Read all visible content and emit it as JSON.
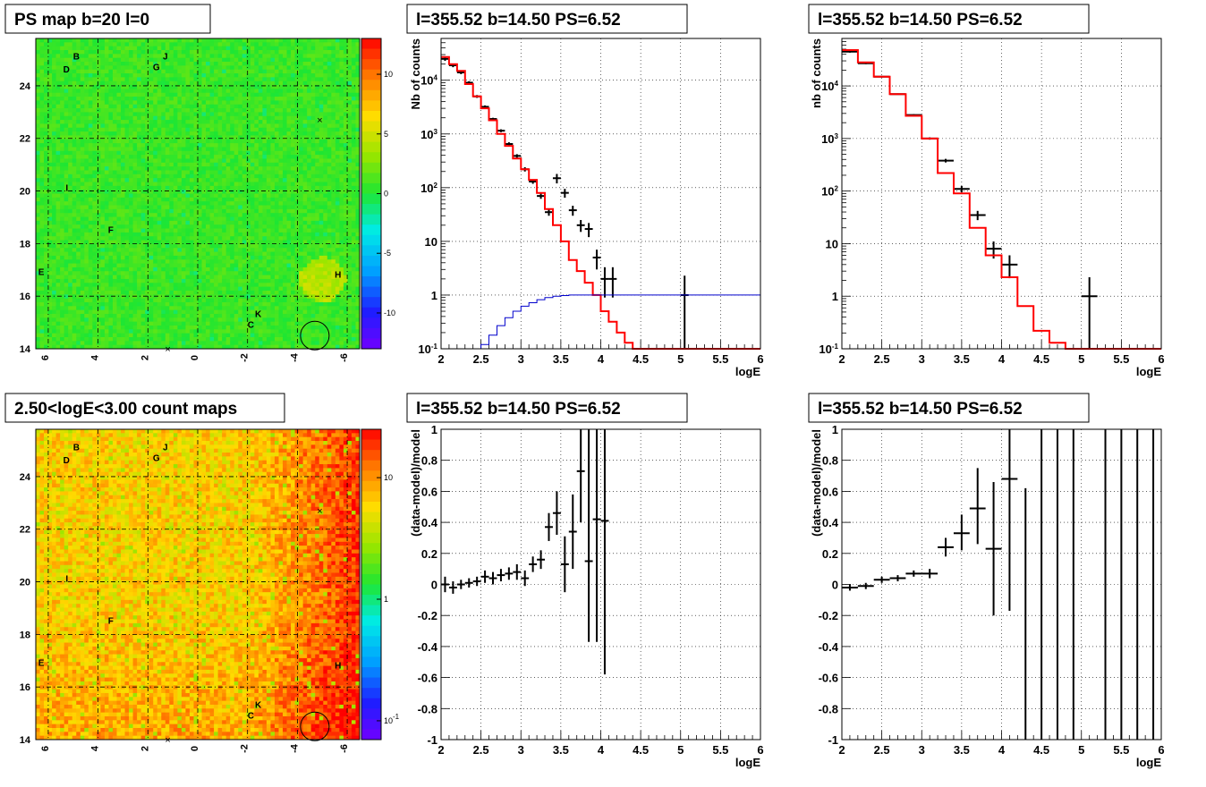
{
  "chart_data": [
    {
      "id": "ps-map",
      "type": "heatmap",
      "title": "PS map b=20 l=0",
      "x_ticks": [
        "6",
        "4",
        "2",
        "0",
        "-2",
        "-4",
        "-6"
      ],
      "y_ticks": [
        "14",
        "16",
        "18",
        "20",
        "22",
        "24"
      ],
      "xlim": [
        6.5,
        -6.5
      ],
      "ylim": [
        14,
        25.8
      ],
      "colorbar_ticks": [
        "10",
        "5",
        "0",
        "-5",
        "-10"
      ],
      "colorbar_range": [
        -13,
        13
      ],
      "colorbar_scale": "linear",
      "base_color": "#2fe62a",
      "source_labels": [
        {
          "text": "B",
          "l": 5.0,
          "b": 25.0
        },
        {
          "text": "D",
          "l": 5.4,
          "b": 24.5
        },
        {
          "text": "J",
          "l": 1.4,
          "b": 25.0
        },
        {
          "text": "G",
          "l": 1.8,
          "b": 24.6
        },
        {
          "text": "I",
          "l": 5.3,
          "b": 20.0
        },
        {
          "text": "F",
          "l": 3.6,
          "b": 18.4
        },
        {
          "text": "E",
          "l": 6.4,
          "b": 16.8
        },
        {
          "text": "H",
          "l": -5.5,
          "b": 16.7
        },
        {
          "text": "K",
          "l": -2.3,
          "b": 15.2
        },
        {
          "text": "C",
          "l": -2.0,
          "b": 14.8
        }
      ],
      "markers": [
        {
          "type": "x",
          "l": -4.9,
          "b": 22.7
        },
        {
          "type": "x",
          "l": 1.2,
          "b": 14.0
        },
        {
          "type": "circle",
          "l": -4.7,
          "b": 14.5,
          "r": 0.5
        }
      ]
    },
    {
      "id": "count-map",
      "type": "heatmap",
      "title": "2.50<logE<3.00 count maps",
      "x_ticks": [
        "6",
        "4",
        "2",
        "0",
        "-2",
        "-4",
        "-6"
      ],
      "y_ticks": [
        "14",
        "16",
        "18",
        "20",
        "22",
        "24"
      ],
      "xlim": [
        6.5,
        -6.5
      ],
      "ylim": [
        14,
        25.8
      ],
      "colorbar_ticks": [
        "10",
        "1",
        "10^-1"
      ],
      "colorbar_range": [
        0.07,
        25
      ],
      "colorbar_scale": "log",
      "base_color": "#ffa000",
      "source_labels": [
        {
          "text": "B",
          "l": 5.0,
          "b": 25.0
        },
        {
          "text": "D",
          "l": 5.4,
          "b": 24.5
        },
        {
          "text": "J",
          "l": 1.4,
          "b": 25.0
        },
        {
          "text": "G",
          "l": 1.8,
          "b": 24.6
        },
        {
          "text": "I",
          "l": 5.3,
          "b": 20.0
        },
        {
          "text": "F",
          "l": 3.6,
          "b": 18.4
        },
        {
          "text": "E",
          "l": 6.4,
          "b": 16.8
        },
        {
          "text": "H",
          "l": -5.5,
          "b": 16.7
        },
        {
          "text": "K",
          "l": -2.3,
          "b": 15.2
        },
        {
          "text": "C",
          "l": -2.0,
          "b": 14.8
        }
      ],
      "markers": [
        {
          "type": "x",
          "l": -4.9,
          "b": 22.7
        },
        {
          "type": "x",
          "l": 1.2,
          "b": 14.0
        },
        {
          "type": "circle",
          "l": -4.7,
          "b": 14.5,
          "r": 0.5
        }
      ]
    },
    {
      "id": "spectrum-fine",
      "type": "line",
      "title": "l=355.52 b=14.50 PS=6.52",
      "xlabel": "logE",
      "ylabel": "Nb of counts",
      "xlim": [
        2,
        6
      ],
      "ylim": [
        0.1,
        60000
      ],
      "yscale": "log",
      "grid": true,
      "x_ticks": [
        "2",
        "2.5",
        "3",
        "3.5",
        "4",
        "4.5",
        "5",
        "5.5",
        "6"
      ],
      "y_ticks": [
        {
          "v": 0.1,
          "label": "10^-1"
        },
        {
          "v": 1,
          "label": "1"
        },
        {
          "v": 10,
          "label": "10"
        },
        {
          "v": 100,
          "label": "10^2"
        },
        {
          "v": 1000,
          "label": "10^3"
        },
        {
          "v": 10000,
          "label": "10^4"
        }
      ],
      "bin_edges": [
        2.0,
        2.1,
        2.2,
        2.3,
        2.4,
        2.5,
        2.6,
        2.7,
        2.8,
        2.9,
        3.0,
        3.1,
        3.2,
        3.3,
        3.4,
        3.5,
        3.6,
        3.7,
        3.8,
        3.9,
        4.0,
        4.1,
        4.2,
        4.3,
        4.4,
        4.5,
        4.6,
        4.7,
        4.8,
        4.9,
        5.0,
        5.1,
        5.2,
        5.3,
        5.4,
        5.5,
        5.6,
        5.7,
        5.8,
        5.9,
        6.0
      ],
      "series": [
        {
          "name": "",
          "kind": "data-points",
          "color": "#000000",
          "x": [
            2.05,
            2.15,
            2.25,
            2.35,
            2.45,
            2.55,
            2.65,
            2.75,
            2.85,
            2.95,
            3.05,
            3.15,
            3.25,
            3.35,
            3.45,
            3.55,
            3.65,
            3.75,
            3.85,
            3.95,
            4.05,
            4.15,
            5.05
          ],
          "y": [
            25000,
            19000,
            14000,
            9000,
            5000,
            3200,
            1900,
            1150,
            650,
            390,
            220,
            130,
            70,
            35,
            150,
            80,
            38,
            20,
            17,
            5,
            2,
            2,
            1
          ],
          "ylo": [
            23000,
            17500,
            13000,
            8400,
            4700,
            3000,
            1800,
            1080,
            600,
            360,
            200,
            118,
            62,
            30,
            120,
            65,
            30,
            15,
            12,
            3,
            0.9,
            0.9,
            0.1
          ],
          "yhi": [
            27000,
            20500,
            15000,
            9600,
            5300,
            3400,
            2000,
            1220,
            700,
            420,
            240,
            142,
            78,
            40,
            180,
            95,
            46,
            25,
            22,
            7,
            3.3,
            3.3,
            2.3
          ]
        },
        {
          "name": "",
          "kind": "step",
          "color": "#ff0000",
          "values": [
            27000,
            20000,
            15000,
            8500,
            5000,
            3000,
            1800,
            1000,
            600,
            350,
            220,
            140,
            80,
            40,
            20,
            10,
            4.5,
            2.8,
            1.7,
            1.0,
            0.5,
            0.32,
            0.2,
            0.13,
            0.1,
            0.09,
            0.09,
            0.09,
            0.09,
            0.09,
            0.09,
            0.09,
            0.09,
            0.09,
            0.09,
            0.09,
            0.09,
            0.09,
            0.09,
            0.09
          ]
        },
        {
          "name": "",
          "kind": "step",
          "color": "#0000cc",
          "values": [
            0.09,
            0.09,
            0.09,
            0.09,
            0.09,
            0.12,
            0.18,
            0.27,
            0.38,
            0.5,
            0.62,
            0.72,
            0.82,
            0.9,
            0.95,
            0.98,
            1,
            1,
            1,
            1,
            1,
            1,
            1,
            1,
            1,
            1,
            1,
            1,
            1,
            1,
            1,
            1,
            1,
            1,
            1,
            1,
            1,
            1,
            1,
            1
          ]
        }
      ]
    },
    {
      "id": "spectrum-coarse",
      "type": "line",
      "title": "l=355.52 b=14.50 PS=6.52",
      "xlabel": "logE",
      "ylabel": "nb of counts",
      "xlim": [
        2,
        6
      ],
      "ylim": [
        0.1,
        80000
      ],
      "yscale": "log",
      "grid": true,
      "x_ticks": [
        "2",
        "2.5",
        "3",
        "3.5",
        "4",
        "4.5",
        "5",
        "5.5",
        "6"
      ],
      "y_ticks": [
        {
          "v": 0.1,
          "label": "10^-1"
        },
        {
          "v": 1,
          "label": "1"
        },
        {
          "v": 10,
          "label": "10"
        },
        {
          "v": 100,
          "label": "10^2"
        },
        {
          "v": 1000,
          "label": "10^3"
        },
        {
          "v": 10000,
          "label": "10^4"
        }
      ],
      "bin_edges": [
        2.0,
        2.2,
        2.4,
        2.6,
        2.8,
        3.0,
        3.2,
        3.4,
        3.6,
        3.8,
        4.0,
        4.2,
        4.4,
        4.6,
        4.8,
        5.0,
        5.2,
        5.4,
        5.6,
        5.8,
        6.0
      ],
      "series": [
        {
          "name": "",
          "kind": "data-points",
          "color": "#000000",
          "x": [
            2.1,
            2.3,
            2.5,
            2.7,
            2.9,
            3.1,
            3.3,
            3.5,
            3.7,
            3.9,
            4.1,
            5.1
          ],
          "y": [
            45000,
            27000,
            15000,
            7000,
            2800,
            1000,
            380,
            110,
            35,
            8,
            4,
            1
          ],
          "ylo": [
            43000,
            26000,
            14500,
            6800,
            2700,
            950,
            350,
            95,
            28,
            5.2,
            2.2,
            0.1
          ],
          "yhi": [
            47000,
            28000,
            15500,
            7200,
            2900,
            1050,
            410,
            125,
            42,
            11,
            6,
            2.3
          ]
        },
        {
          "name": "",
          "kind": "step",
          "color": "#ff0000",
          "values": [
            48000,
            28000,
            15000,
            7000,
            2700,
            1000,
            220,
            90,
            20,
            6,
            2.3,
            0.65,
            0.22,
            0.13,
            0.1,
            0.1,
            0.1,
            0.1,
            0.1,
            0.1
          ]
        }
      ]
    },
    {
      "id": "residual-fine",
      "type": "scatter",
      "title": "l=355.52 b=14.50 PS=6.52",
      "xlabel": "logE",
      "ylabel": "(data-model)/model",
      "xlim": [
        2,
        6
      ],
      "ylim": [
        -1,
        1
      ],
      "grid": true,
      "x_ticks": [
        "2",
        "2.5",
        "3",
        "3.5",
        "4",
        "4.5",
        "5",
        "5.5",
        "6"
      ],
      "y_ticks": [
        "-1",
        "-0.8",
        "-0.6",
        "-0.4",
        "-0.2",
        "0",
        "0.2",
        "0.4",
        "0.6",
        "0.8",
        "1"
      ],
      "x_half_width": 0.05,
      "series": [
        {
          "name": "",
          "color": "#000000",
          "x": [
            2.05,
            2.15,
            2.25,
            2.35,
            2.45,
            2.55,
            2.65,
            2.75,
            2.85,
            2.95,
            3.05,
            3.15,
            3.25,
            3.35,
            3.45,
            3.55,
            3.65,
            3.75,
            3.85,
            3.95,
            4.05
          ],
          "y": [
            0.0,
            -0.02,
            0.0,
            0.01,
            0.02,
            0.05,
            0.04,
            0.06,
            0.07,
            0.08,
            0.04,
            0.13,
            0.16,
            0.37,
            0.46,
            0.13,
            0.34,
            0.73,
            0.15,
            0.42,
            0.41
          ],
          "ylo": [
            -0.05,
            -0.06,
            -0.03,
            -0.02,
            -0.01,
            0.01,
            0.0,
            0.02,
            0.03,
            0.03,
            -0.01,
            0.08,
            0.1,
            0.28,
            0.32,
            -0.05,
            0.1,
            0.4,
            -0.37,
            -0.37,
            -0.58
          ],
          "yhi": [
            0.05,
            0.02,
            0.03,
            0.04,
            0.05,
            0.09,
            0.08,
            0.1,
            0.11,
            0.13,
            0.09,
            0.18,
            0.22,
            0.46,
            0.6,
            0.31,
            0.58,
            1.0,
            1.0,
            1.0,
            1.0
          ]
        }
      ]
    },
    {
      "id": "residual-coarse",
      "type": "scatter",
      "title": "l=355.52 b=14.50 PS=6.52",
      "xlabel": "logE",
      "ylabel": "(data-model)/model",
      "xlim": [
        2,
        6
      ],
      "ylim": [
        -1,
        1
      ],
      "grid": true,
      "x_ticks": [
        "2",
        "2.5",
        "3",
        "3.5",
        "4",
        "4.5",
        "5",
        "5.5",
        "6"
      ],
      "y_ticks": [
        "-1",
        "-0.8",
        "-0.6",
        "-0.4",
        "-0.2",
        "0",
        "0.2",
        "0.4",
        "0.6",
        "0.8",
        "1"
      ],
      "x_half_width": 0.1,
      "series": [
        {
          "name": "",
          "color": "#000000",
          "x": [
            2.1,
            2.3,
            2.5,
            2.7,
            2.9,
            3.1,
            3.3,
            3.5,
            3.7,
            3.9,
            4.1
          ],
          "y": [
            -0.02,
            -0.01,
            0.03,
            0.04,
            0.07,
            0.07,
            0.24,
            0.33,
            0.49,
            0.23,
            0.68
          ],
          "ylo": [
            -0.04,
            -0.03,
            0.01,
            0.02,
            0.05,
            0.04,
            0.18,
            0.22,
            0.26,
            -0.2,
            -0.17
          ],
          "yhi": [
            0.0,
            0.01,
            0.05,
            0.06,
            0.09,
            0.1,
            0.3,
            0.45,
            0.75,
            0.66,
            1.0
          ]
        },
        {
          "name": "",
          "color": "#000000",
          "x": [
            4.3,
            4.5,
            4.7,
            4.9,
            5.3,
            5.5,
            5.7,
            5.9
          ],
          "y": [
            null,
            null,
            null,
            null,
            null,
            null,
            null,
            null
          ],
          "ylo": [
            -1,
            -1,
            -1,
            -1,
            -1,
            -1,
            -1,
            -1
          ],
          "yhi": [
            0.62,
            1,
            1,
            1,
            1,
            1,
            1,
            1
          ]
        }
      ]
    }
  ]
}
